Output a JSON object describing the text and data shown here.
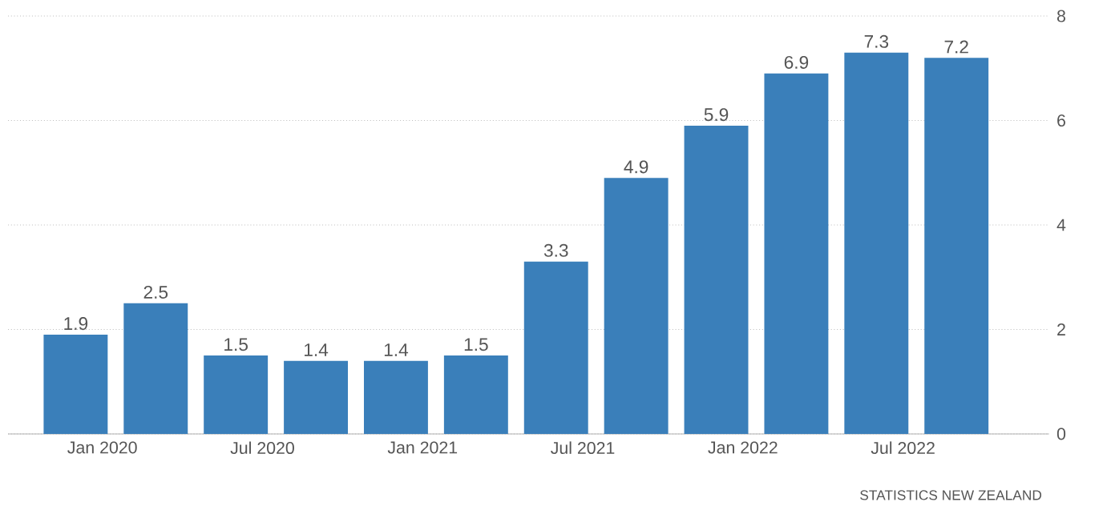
{
  "chart_data": {
    "type": "bar",
    "x": [
      "2019-12",
      "2020-03",
      "2020-06",
      "2020-09",
      "2020-12",
      "2021-03",
      "2021-06",
      "2021-09",
      "2021-12",
      "2022-03",
      "2022-06",
      "2022-09"
    ],
    "values": [
      1.9,
      2.5,
      1.5,
      1.4,
      1.4,
      1.5,
      3.3,
      4.9,
      5.9,
      6.9,
      7.3,
      7.2
    ],
    "value_labels": [
      "1.9",
      "2.5",
      "1.5",
      "1.4",
      "1.4",
      "1.5",
      "3.3",
      "4.9",
      "5.9",
      "6.9",
      "7.3",
      "7.2"
    ],
    "color": "#3a7fba",
    "xlim": [
      "2019-09-15",
      "2022-12-15"
    ],
    "xticks": [
      {
        "value": "2020-01",
        "label": "Jan 2020"
      },
      {
        "value": "2020-07",
        "label": "Jul 2020"
      },
      {
        "value": "2021-01",
        "label": "Jan 2021"
      },
      {
        "value": "2021-07",
        "label": "Jul 2021"
      },
      {
        "value": "2022-01",
        "label": "Jan 2022"
      },
      {
        "value": "2022-07",
        "label": "Jul 2022"
      }
    ],
    "ylim": [
      0,
      8
    ],
    "yticks": [
      0,
      2,
      4,
      6,
      8
    ],
    "grid": "y",
    "annotations": [
      "STATISTICS NEW ZEALAND"
    ]
  }
}
